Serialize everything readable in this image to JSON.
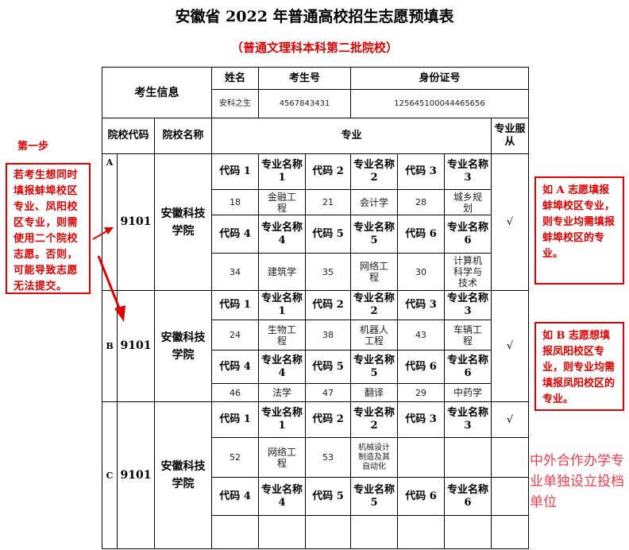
{
  "title": "安徽省 2022 年普通高校招生志愿预填表",
  "subtitle": "（普通文理科本科第二批院校）",
  "student": {
    "section_label": "考生信息",
    "name_label": "姓名",
    "exam_no_label": "考生号",
    "id_label": "身份证号",
    "name": "安科之生",
    "exam_no": "4567843431",
    "id_no": "125645100044465656"
  },
  "headers": {
    "school_code": "院校代码",
    "school_name": "院校名称",
    "major": "专业",
    "obey": "专业服从"
  },
  "blocks": [
    {
      "letter": "A",
      "code": "9101",
      "name": "安徽科技学院",
      "obey": "√",
      "rows": [
        [
          "代码 1",
          "专业名称 1",
          "代码 2",
          "专业名称 2",
          "代码 3",
          "专业名称 3"
        ],
        [
          "18",
          "金融工程",
          "21",
          "会计学",
          "28",
          "城乡规划"
        ],
        [
          "代码 4",
          "专业名称 4",
          "代码 5",
          "专业名称 5",
          "代码 6",
          "专业名称 6"
        ],
        [
          "34",
          "建筑学",
          "35",
          "网络工程",
          "30",
          "计算机科学与技术"
        ]
      ]
    },
    {
      "letter": "B",
      "code": "9101",
      "name": "安徽科技学院",
      "obey": "√",
      "rows": [
        [
          "代码 1",
          "专业名称 1",
          "代码 2",
          "专业名称 2",
          "代码 3",
          "专业名称 3"
        ],
        [
          "24",
          "生物工程",
          "38",
          "机器人工程",
          "43",
          "车辆工程"
        ],
        [
          "代码 4",
          "专业名称 4",
          "代码 5",
          "专业名称 5",
          "代码 6",
          "专业名称 6"
        ],
        [
          "46",
          "法学",
          "47",
          "翻译",
          "29",
          "中药学"
        ]
      ]
    },
    {
      "letter": "C",
      "code": "9101",
      "name": "安徽科技学院",
      "obey": "√",
      "rows": [
        [
          "代码 1",
          "专业名称 1",
          "代码 2",
          "专业名称 2",
          "代码 3",
          "专业名称 3"
        ],
        [
          "52",
          "网络工程",
          "53",
          "机械设计制造及其自动化",
          "",
          ""
        ],
        [
          "代码 4",
          "专业名称 4",
          "代码 5",
          "专业名称 5",
          "代码 6",
          "专业名称 6"
        ],
        [
          "",
          "",
          "",
          "",
          "",
          ""
        ]
      ]
    }
  ],
  "annotations": {
    "step": "第一步",
    "left_note": "若考生想同时填报蚌埠校区专业、凤阳校区专业，则需使用二个院校志愿。否则，可能导致志愿无法提交。",
    "note_a": "如 A 志愿填报蚌埠校区专业，则专业均需填报蚌埠校区的专业。",
    "note_b": "如 B 志愿想填报凤阳校区专业，则专业均需填报凤阳校区的专业。",
    "note_c": "中外合作办学专业单独设立投档单位"
  },
  "colors": {
    "annotation_red": "#e00000",
    "note_pink": "#f03c4e"
  }
}
